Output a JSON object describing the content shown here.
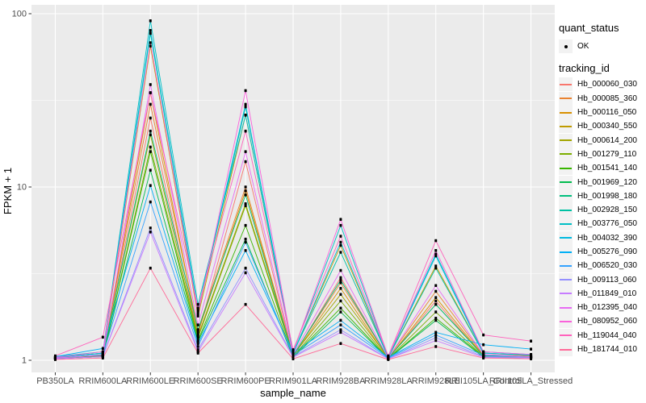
{
  "figure": {
    "background": "#FFFFFF",
    "panel_bg": "#EBEBEB",
    "grid_color": "#FFFFFF",
    "tick_color": "#333333",
    "tick_label_color": "#4D4D4D",
    "title_color": "#000000",
    "point_color": "#000000",
    "legend_key_bg": "#F2F2F2"
  },
  "legend": {
    "quant_title": "quant_status",
    "quant_item_label": "OK",
    "tracking_title": "tracking_id"
  },
  "chart_data": {
    "type": "line",
    "title": "",
    "xlabel": "sample_name",
    "ylabel": "FPKM + 1",
    "y_scale": "log10",
    "ylim": [
      0.85,
      112
    ],
    "grid": true,
    "legend_position": "right",
    "y_tick_labels": [
      "1",
      "10",
      "100"
    ],
    "y_tick_values": [
      1,
      10,
      100
    ],
    "y_minor_tick_values": [
      3.1623,
      31.623
    ],
    "categories": [
      "PB350LA",
      "RRIM600LA",
      "RRIM600LE",
      "RRIM600SE",
      "RRIM600PE",
      "RRIM901LA",
      "RRIM928BA",
      "RRIM928LA",
      "RRIM928LE",
      "RRII105LA_Control",
      "RRII105LA_Stressed"
    ],
    "quant_status_all": "OK",
    "series": [
      {
        "name": "Hb_000060_030",
        "color": "#F8766D",
        "values": [
          1.02,
          1.05,
          25,
          1.4,
          14,
          1.05,
          3.0,
          1.02,
          2.2,
          1.05,
          1.03
        ]
      },
      {
        "name": "Hb_000085_360",
        "color": "#EA8331",
        "values": [
          1.03,
          1.07,
          30,
          1.5,
          10,
          1.07,
          2.8,
          1.03,
          2.5,
          1.07,
          1.05
        ]
      },
      {
        "name": "Hb_000116_050",
        "color": "#D89000",
        "values": [
          1.02,
          1.06,
          35,
          1.45,
          9.5,
          1.06,
          2.6,
          1.02,
          2.3,
          1.06,
          1.04
        ]
      },
      {
        "name": "Hb_000340_550",
        "color": "#C09B00",
        "values": [
          1.04,
          1.1,
          65,
          1.8,
          26,
          1.1,
          4.6,
          1.04,
          3.5,
          1.1,
          1.06
        ]
      },
      {
        "name": "Hb_000614_200",
        "color": "#A3A500",
        "values": [
          1.03,
          1.08,
          20,
          1.38,
          8.0,
          1.07,
          2.4,
          1.03,
          2.1,
          1.07,
          1.05
        ]
      },
      {
        "name": "Hb_001279_110",
        "color": "#7CAE00",
        "values": [
          1.02,
          1.05,
          17,
          1.35,
          7.8,
          1.05,
          2.2,
          1.02,
          1.9,
          1.05,
          1.04
        ]
      },
      {
        "name": "Hb_001541_140",
        "color": "#39B600",
        "values": [
          1.02,
          1.06,
          16,
          1.3,
          6.0,
          1.05,
          2.0,
          1.02,
          1.75,
          1.05,
          1.03
        ]
      },
      {
        "name": "Hb_001969_120",
        "color": "#00BB4E",
        "values": [
          1.02,
          1.05,
          12.5,
          1.28,
          5.0,
          1.04,
          1.9,
          1.02,
          1.7,
          1.04,
          1.03
        ]
      },
      {
        "name": "Hb_001998_180",
        "color": "#00BF7D",
        "values": [
          1.03,
          1.07,
          21,
          1.5,
          9.0,
          1.06,
          2.9,
          1.03,
          2.1,
          1.06,
          1.04
        ]
      },
      {
        "name": "Hb_002928_150",
        "color": "#00C1A3",
        "values": [
          1.04,
          1.1,
          77,
          1.9,
          29,
          1.1,
          4.2,
          1.04,
          3.4,
          1.1,
          1.07
        ]
      },
      {
        "name": "Hb_003776_050",
        "color": "#00BFC4",
        "values": [
          1.05,
          1.12,
          91,
          2.1,
          26,
          1.12,
          6.0,
          1.05,
          4.1,
          1.12,
          1.08
        ]
      },
      {
        "name": "Hb_004032_390",
        "color": "#00BAE0",
        "values": [
          1.04,
          1.1,
          80,
          1.95,
          30,
          1.1,
          4.8,
          1.04,
          4.0,
          1.1,
          1.07
        ]
      },
      {
        "name": "Hb_005276_090",
        "color": "#00B0F6",
        "values": [
          1.05,
          1.17,
          10.2,
          1.25,
          4.3,
          1.1,
          1.7,
          1.04,
          1.45,
          1.23,
          1.16
        ]
      },
      {
        "name": "Hb_006520_030",
        "color": "#35A2FF",
        "values": [
          1.03,
          1.08,
          8.2,
          1.2,
          4.8,
          1.07,
          1.6,
          1.03,
          1.4,
          1.07,
          1.05
        ]
      },
      {
        "name": "Hb_009113_060",
        "color": "#9590FF",
        "values": [
          1.02,
          1.05,
          5.8,
          1.15,
          3.4,
          1.05,
          1.5,
          1.02,
          1.35,
          1.05,
          1.04
        ]
      },
      {
        "name": "Hb_011849_010",
        "color": "#C77CFF",
        "values": [
          1.02,
          1.05,
          5.5,
          1.12,
          3.2,
          1.04,
          1.45,
          1.02,
          1.3,
          1.04,
          1.03
        ]
      },
      {
        "name": "Hb_012395_040",
        "color": "#E76BF3",
        "values": [
          1.03,
          1.07,
          39,
          1.6,
          16,
          1.08,
          3.3,
          1.03,
          2.7,
          1.08,
          1.05
        ]
      },
      {
        "name": "Hb_080952_060",
        "color": "#FA62DB",
        "values": [
          1.04,
          1.12,
          68,
          1.85,
          36,
          1.12,
          6.5,
          1.05,
          4.3,
          1.12,
          1.08
        ]
      },
      {
        "name": "Hb_119044_040",
        "color": "#FF62BC",
        "values": [
          1.06,
          1.36,
          35,
          2.0,
          21,
          1.15,
          5.2,
          1.06,
          4.9,
          1.4,
          1.29
        ]
      },
      {
        "name": "Hb_181744_010",
        "color": "#FF6A98",
        "values": [
          1.01,
          1.03,
          3.4,
          1.1,
          2.1,
          1.02,
          1.25,
          1.01,
          1.2,
          1.03,
          1.02
        ]
      }
    ]
  }
}
